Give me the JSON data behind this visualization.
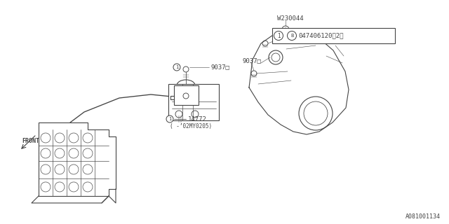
{
  "bg_color": "#ffffff",
  "line_color": "#444444",
  "text_color": "#444444",
  "diagram_id": "A081001134",
  "labels": {
    "90371_top": "9037□",
    "90371_bottom": "9037□",
    "14772": "14772",
    "date_range": "( -’02MY0205)",
    "W230044": "W230044",
    "FRONT": "FRONT"
  }
}
